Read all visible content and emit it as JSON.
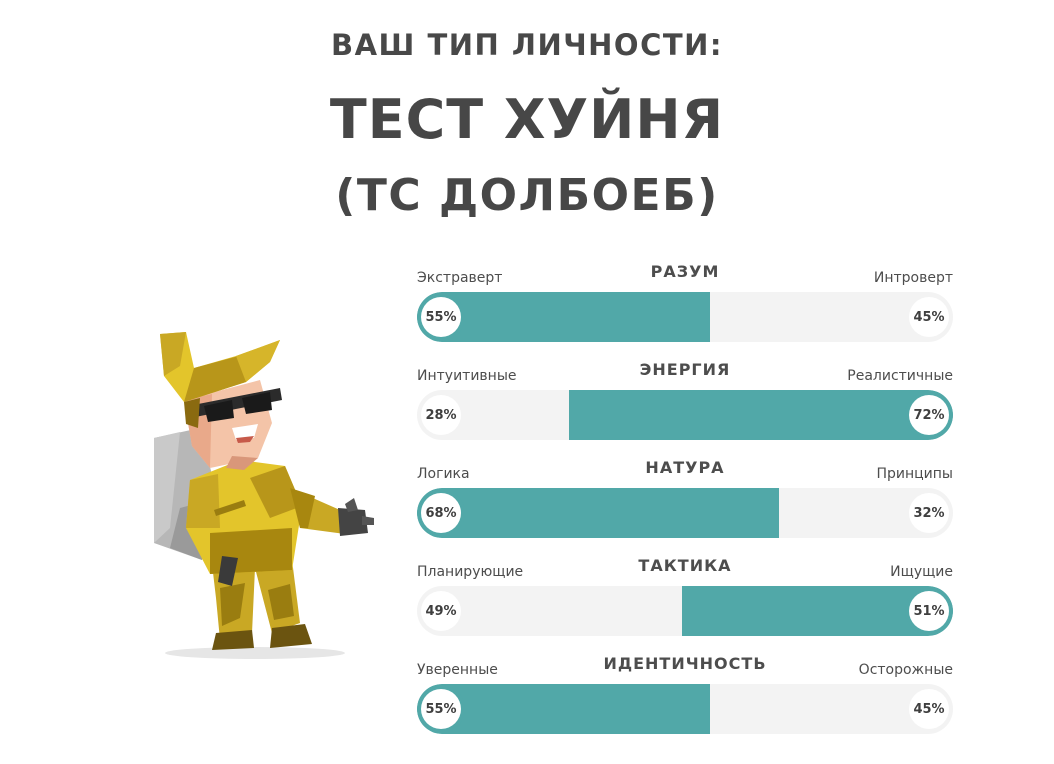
{
  "header": {
    "subtitle": "ВАШ ТИП ЛИЧНОСТИ:",
    "title": "ТЕСТ ХУЙНЯ",
    "code": "(ТС ДОЛБОЕБ)"
  },
  "character": {
    "icon": "sunglasses-adventurer-illustration"
  },
  "colors": {
    "accent": "#51a8a8",
    "track": "#f3f3f3",
    "text": "#4a4a4a"
  },
  "traits": [
    {
      "name": "РАЗУМ",
      "left_label": "Экстраверт",
      "right_label": "Интроверт",
      "left_value": "55%",
      "right_value": "45%",
      "left_pct": 55,
      "dominant": "left"
    },
    {
      "name": "ЭНЕРГИЯ",
      "left_label": "Интуитивные",
      "right_label": "Реалистичные",
      "left_value": "28%",
      "right_value": "72%",
      "left_pct": 28,
      "dominant": "right"
    },
    {
      "name": "НАТУРА",
      "left_label": "Логика",
      "right_label": "Принципы",
      "left_value": "68%",
      "right_value": "32%",
      "left_pct": 68,
      "dominant": "left"
    },
    {
      "name": "ТАКТИКА",
      "left_label": "Планирующие",
      "right_label": "Ищущие",
      "left_value": "49%",
      "right_value": "51%",
      "left_pct": 49,
      "dominant": "right"
    },
    {
      "name": "ИДЕНТИЧНОСТЬ",
      "left_label": "Уверенные",
      "right_label": "Осторожные",
      "left_value": "55%",
      "right_value": "45%",
      "left_pct": 55,
      "dominant": "left"
    }
  ]
}
